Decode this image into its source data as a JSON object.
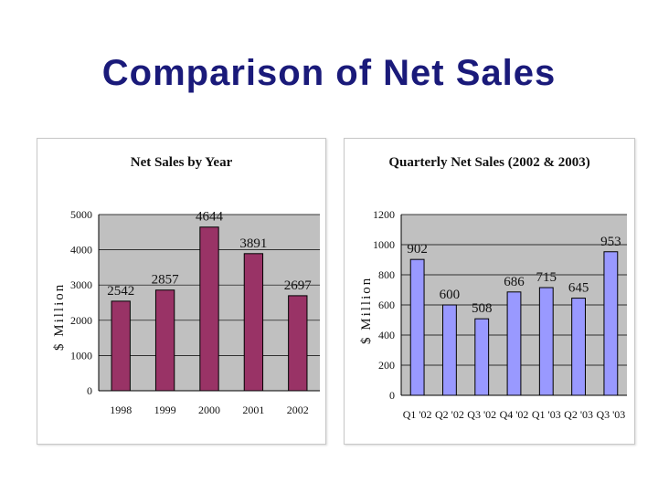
{
  "slide": {
    "title": "Comparison of Net Sales"
  },
  "chart_data": [
    {
      "type": "bar",
      "title": "Net Sales by Year",
      "xlabel": "",
      "ylabel": "$ Million",
      "categories": [
        "1998",
        "1999",
        "2000",
        "2001",
        "2002"
      ],
      "values": [
        2542,
        2857,
        4644,
        3891,
        2697
      ],
      "data_labels": [
        "2542",
        "2857",
        "4644",
        "3891",
        "2697"
      ],
      "ylim": [
        0,
        5000
      ],
      "yticks": [
        "0",
        "1000",
        "2000",
        "3000",
        "4000",
        "5000"
      ],
      "grid": true,
      "bar_color": "#993366",
      "plot_bg": "#c0c0c0"
    },
    {
      "type": "bar",
      "title": "Quarterly Net Sales (2002 & 2003)",
      "xlabel": "",
      "ylabel": "$ Million",
      "categories": [
        "Q1 '02",
        "Q2 '02",
        "Q3 '02",
        "Q4 '02",
        "Q1 '03",
        "Q2 '03",
        "Q3 '03"
      ],
      "values": [
        902,
        600,
        508,
        686,
        715,
        645,
        953
      ],
      "data_labels": [
        "902",
        "600",
        "508",
        "686",
        "715",
        "645",
        "953"
      ],
      "ylim": [
        0,
        1200
      ],
      "yticks": [
        "0",
        "200",
        "400",
        "600",
        "800",
        "1000",
        "1200"
      ],
      "grid": true,
      "bar_color": "#9999ff",
      "plot_bg": "#c0c0c0"
    }
  ]
}
